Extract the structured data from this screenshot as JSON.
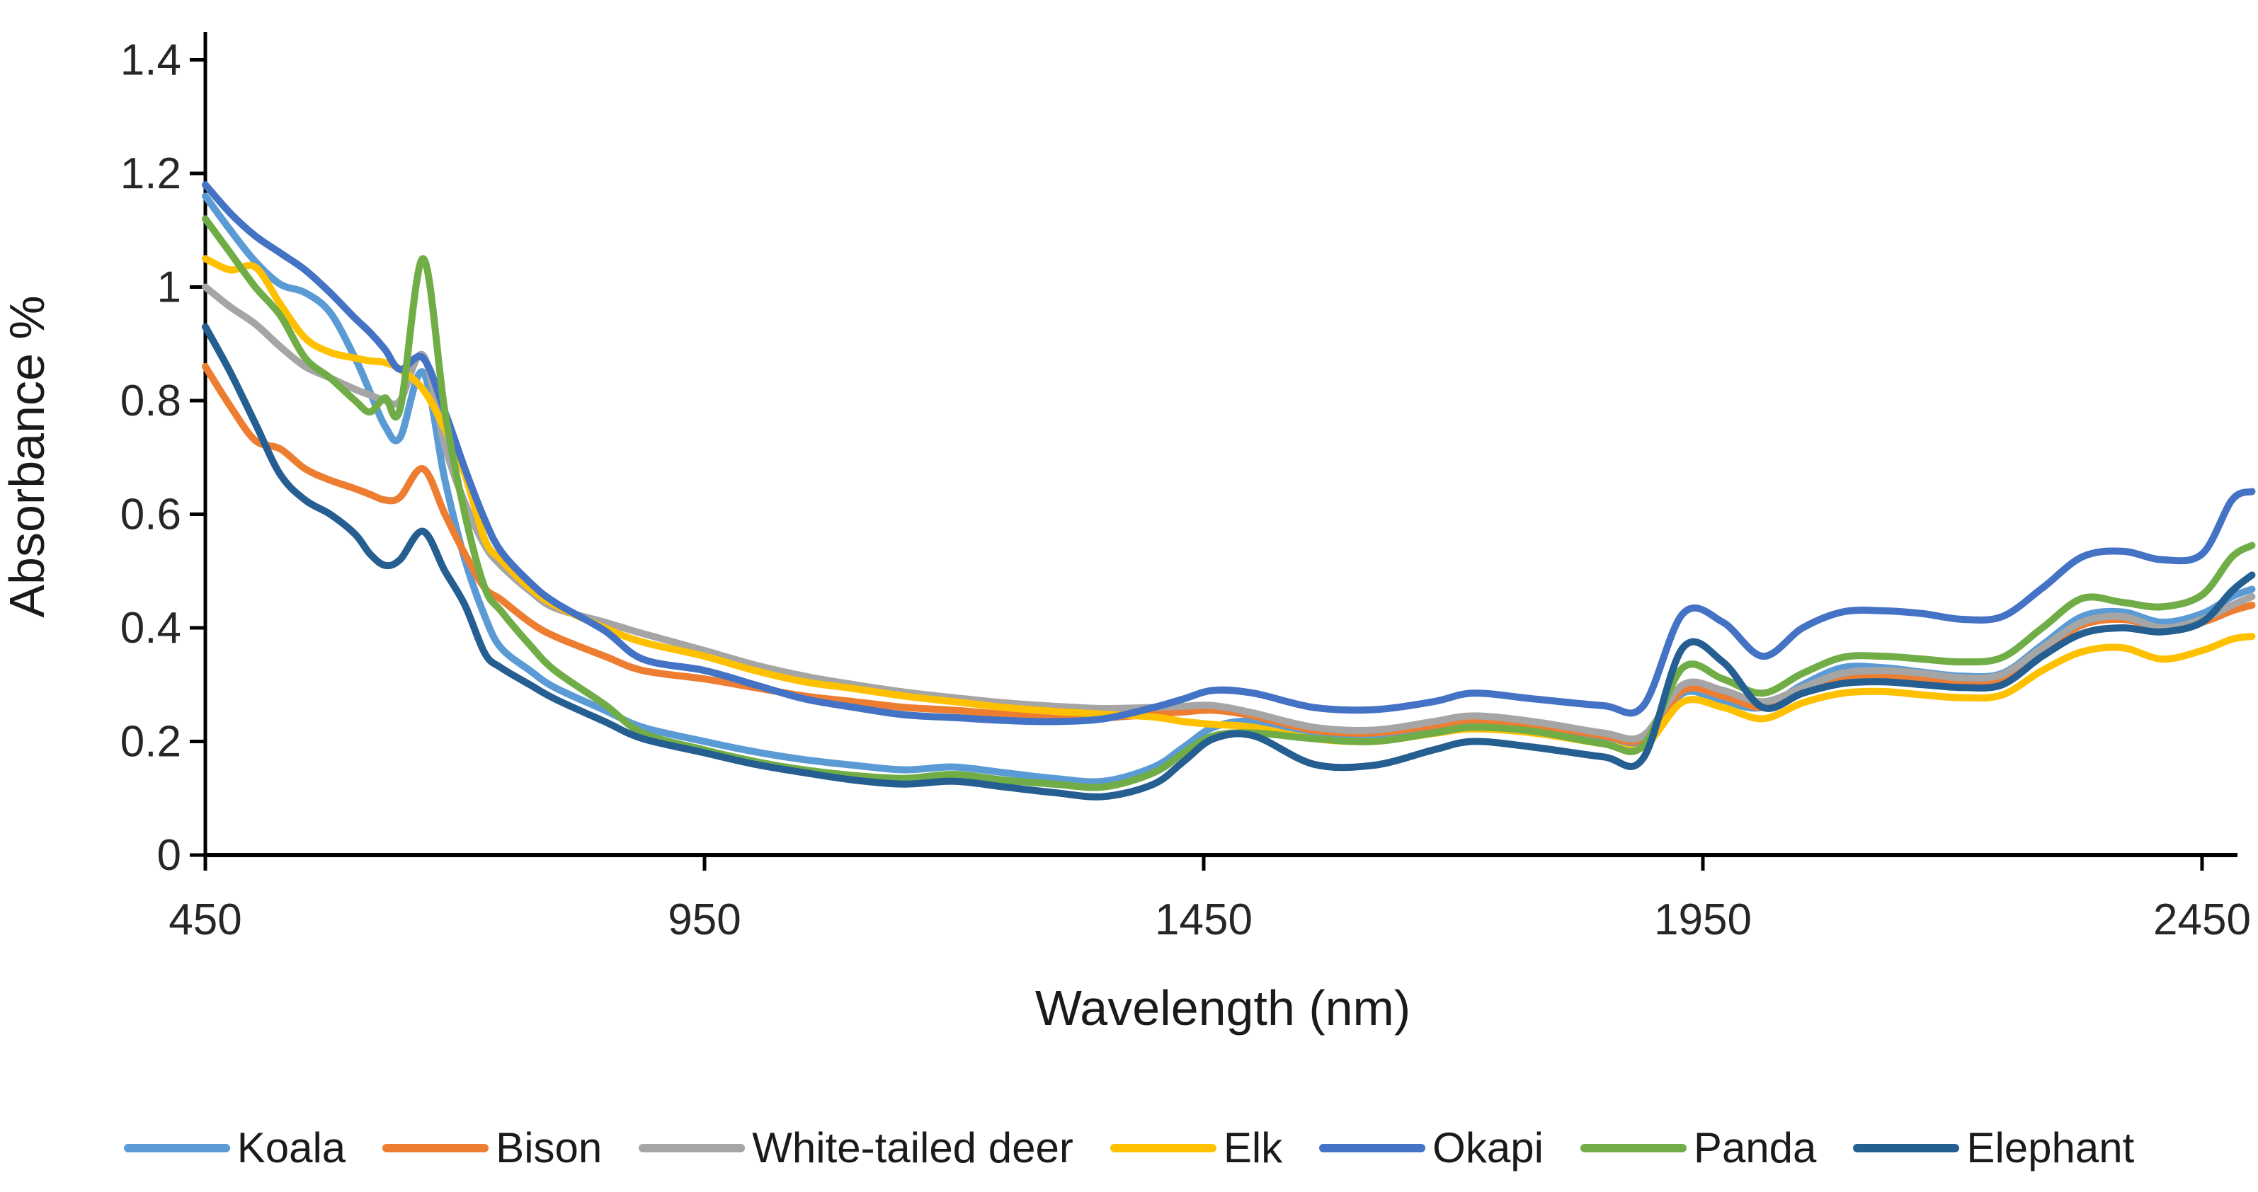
{
  "figure": {
    "background": "#ffffff",
    "axis_color": "#000000",
    "label_color": "#262626"
  },
  "chart_data": {
    "type": "line",
    "title": "",
    "xlabel": "Wavelength (nm)",
    "ylabel": "Absorbance %",
    "xlim": [
      450,
      2510
    ],
    "ylim": [
      0,
      1.45
    ],
    "x_ticks": [
      450,
      950,
      1450,
      1950,
      2450
    ],
    "x_tick_labels": [
      "450",
      "950",
      "1450",
      "1950",
      "2450"
    ],
    "y_ticks": [
      0,
      0.2,
      0.4,
      0.6,
      0.8,
      1.0,
      1.2,
      1.4
    ],
    "y_tick_labels": [
      "0",
      "0.2",
      "0.4",
      "0.6",
      "0.8",
      "1",
      "1.2",
      "1.4"
    ],
    "grid": false,
    "legend_position": "bottom",
    "x": [
      450,
      475,
      500,
      525,
      550,
      575,
      600,
      615,
      630,
      645,
      668,
      690,
      710,
      730,
      746,
      775,
      800,
      850,
      888,
      950,
      1000,
      1050,
      1100,
      1150,
      1200,
      1250,
      1300,
      1350,
      1400,
      1430,
      1460,
      1500,
      1560,
      1620,
      1680,
      1720,
      1780,
      1850,
      1890,
      1930,
      1970,
      2010,
      2050,
      2090,
      2130,
      2170,
      2210,
      2250,
      2290,
      2330,
      2370,
      2410,
      2450,
      2480,
      2500
    ],
    "series": [
      {
        "name": "Koala",
        "color": "#5B9BD5",
        "values": [
          1.16,
          1.1,
          1.045,
          1.005,
          0.99,
          0.955,
          0.875,
          0.815,
          0.755,
          0.735,
          0.85,
          0.66,
          0.52,
          0.42,
          0.365,
          0.325,
          0.295,
          0.255,
          0.225,
          0.2,
          0.182,
          0.168,
          0.158,
          0.15,
          0.155,
          0.145,
          0.135,
          0.13,
          0.155,
          0.19,
          0.225,
          0.235,
          0.21,
          0.205,
          0.22,
          0.23,
          0.222,
          0.2,
          0.197,
          0.285,
          0.27,
          0.26,
          0.3,
          0.33,
          0.33,
          0.322,
          0.315,
          0.32,
          0.37,
          0.42,
          0.428,
          0.41,
          0.425,
          0.455,
          0.468
        ]
      },
      {
        "name": "Bison",
        "color": "#ED7D31",
        "values": [
          0.86,
          0.79,
          0.73,
          0.715,
          0.68,
          0.66,
          0.645,
          0.635,
          0.625,
          0.63,
          0.68,
          0.6,
          0.53,
          0.47,
          0.45,
          0.41,
          0.385,
          0.35,
          0.325,
          0.31,
          0.295,
          0.28,
          0.27,
          0.26,
          0.255,
          0.248,
          0.244,
          0.242,
          0.248,
          0.252,
          0.255,
          0.245,
          0.22,
          0.215,
          0.228,
          0.238,
          0.23,
          0.21,
          0.205,
          0.29,
          0.28,
          0.26,
          0.285,
          0.31,
          0.315,
          0.31,
          0.305,
          0.31,
          0.36,
          0.405,
          0.415,
          0.4,
          0.41,
          0.43,
          0.44
        ]
      },
      {
        "name": "White-tailed deer",
        "color": "#A5A5A5",
        "values": [
          1.0,
          0.965,
          0.935,
          0.895,
          0.86,
          0.84,
          0.82,
          0.81,
          0.8,
          0.8,
          0.88,
          0.72,
          0.62,
          0.545,
          0.51,
          0.465,
          0.435,
          0.41,
          0.39,
          0.36,
          0.335,
          0.315,
          0.3,
          0.287,
          0.277,
          0.268,
          0.262,
          0.258,
          0.26,
          0.262,
          0.263,
          0.25,
          0.225,
          0.22,
          0.235,
          0.245,
          0.235,
          0.215,
          0.21,
          0.3,
          0.29,
          0.27,
          0.295,
          0.32,
          0.325,
          0.32,
          0.312,
          0.318,
          0.365,
          0.41,
          0.42,
          0.4,
          0.415,
          0.44,
          0.455
        ]
      },
      {
        "name": "Elk",
        "color": "#FFC000",
        "values": [
          1.05,
          1.03,
          1.035,
          0.97,
          0.91,
          0.885,
          0.875,
          0.87,
          0.867,
          0.855,
          0.82,
          0.75,
          0.67,
          0.555,
          0.52,
          0.47,
          0.44,
          0.4,
          0.375,
          0.35,
          0.325,
          0.305,
          0.293,
          0.28,
          0.27,
          0.26,
          0.253,
          0.248,
          0.243,
          0.235,
          0.23,
          0.225,
          0.205,
          0.2,
          0.214,
          0.222,
          0.215,
          0.196,
          0.19,
          0.27,
          0.26,
          0.24,
          0.268,
          0.285,
          0.288,
          0.282,
          0.277,
          0.282,
          0.325,
          0.358,
          0.365,
          0.345,
          0.36,
          0.38,
          0.385
        ]
      },
      {
        "name": "Okapi",
        "color": "#4472C4",
        "values": [
          1.18,
          1.13,
          1.09,
          1.06,
          1.03,
          0.99,
          0.945,
          0.92,
          0.89,
          0.855,
          0.875,
          0.78,
          0.68,
          0.59,
          0.535,
          0.48,
          0.445,
          0.395,
          0.345,
          0.325,
          0.3,
          0.275,
          0.26,
          0.247,
          0.242,
          0.237,
          0.235,
          0.24,
          0.26,
          0.275,
          0.29,
          0.285,
          0.26,
          0.256,
          0.27,
          0.285,
          0.275,
          0.263,
          0.262,
          0.425,
          0.41,
          0.35,
          0.4,
          0.428,
          0.43,
          0.425,
          0.415,
          0.42,
          0.47,
          0.525,
          0.535,
          0.52,
          0.53,
          0.625,
          0.64
        ]
      },
      {
        "name": "Panda",
        "color": "#70AD47",
        "values": [
          1.12,
          1.06,
          1.0,
          0.95,
          0.875,
          0.84,
          0.8,
          0.78,
          0.805,
          0.785,
          1.05,
          0.78,
          0.6,
          0.47,
          0.43,
          0.37,
          0.325,
          0.265,
          0.215,
          0.185,
          0.165,
          0.15,
          0.14,
          0.135,
          0.142,
          0.132,
          0.125,
          0.12,
          0.145,
          0.18,
          0.21,
          0.215,
          0.205,
          0.2,
          0.215,
          0.225,
          0.218,
          0.196,
          0.192,
          0.33,
          0.31,
          0.285,
          0.32,
          0.348,
          0.35,
          0.345,
          0.34,
          0.348,
          0.4,
          0.452,
          0.445,
          0.437,
          0.458,
          0.525,
          0.545
        ]
      },
      {
        "name": "Elephant",
        "color": "#255E91",
        "values": [
          0.93,
          0.85,
          0.76,
          0.67,
          0.625,
          0.6,
          0.565,
          0.53,
          0.51,
          0.52,
          0.57,
          0.5,
          0.44,
          0.355,
          0.33,
          0.3,
          0.275,
          0.235,
          0.205,
          0.18,
          0.16,
          0.145,
          0.132,
          0.125,
          0.13,
          0.12,
          0.11,
          0.103,
          0.125,
          0.165,
          0.205,
          0.21,
          0.16,
          0.158,
          0.185,
          0.2,
          0.19,
          0.173,
          0.17,
          0.365,
          0.34,
          0.26,
          0.285,
          0.302,
          0.305,
          0.3,
          0.295,
          0.3,
          0.35,
          0.39,
          0.4,
          0.393,
          0.41,
          0.465,
          0.493
        ]
      }
    ]
  },
  "legend": {
    "entries": [
      {
        "label": "Koala",
        "color": "#5B9BD5"
      },
      {
        "label": "Bison",
        "color": "#ED7D31"
      },
      {
        "label": "White-tailed deer",
        "color": "#A5A5A5"
      },
      {
        "label": "Elk",
        "color": "#FFC000"
      },
      {
        "label": "Okapi",
        "color": "#4472C4"
      },
      {
        "label": "Panda",
        "color": "#70AD47"
      },
      {
        "label": "Elephant",
        "color": "#255E91"
      }
    ]
  }
}
